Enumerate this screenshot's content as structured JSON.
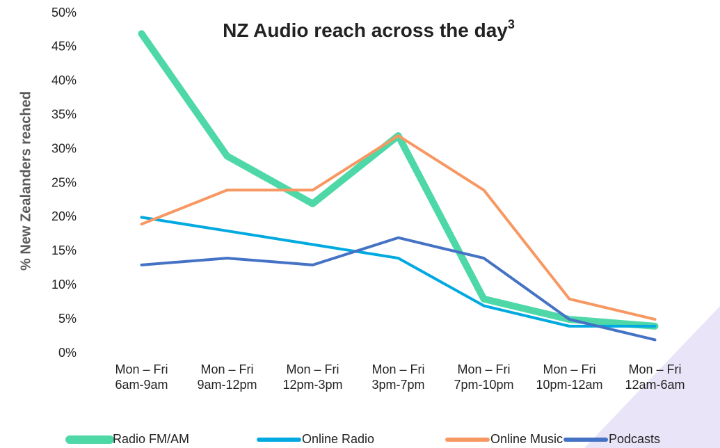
{
  "chart_data": {
    "type": "line",
    "title": "NZ Audio reach across the day",
    "title_note": "3",
    "ylabel": "% New Zealanders reached",
    "categories": [
      [
        "Mon – Fri",
        "6am-9am"
      ],
      [
        "Mon – Fri",
        "9am-12pm"
      ],
      [
        "Mon – Fri",
        "12pm-3pm"
      ],
      [
        "Mon – Fri",
        "3pm-7pm"
      ],
      [
        "Mon – Fri",
        "7pm-10pm"
      ],
      [
        "Mon – Fri",
        "10pm-12am"
      ],
      [
        "Mon – Fri",
        "12am-6am"
      ]
    ],
    "series": [
      {
        "name": "Radio FM/AM",
        "color": "#4ed8a8",
        "width": 10,
        "values": [
          47,
          29,
          22,
          32,
          8,
          5,
          4
        ]
      },
      {
        "name": "Online Radio",
        "color": "#00a9e0",
        "width": 4,
        "values": [
          20,
          18,
          16,
          14,
          7,
          4,
          4
        ]
      },
      {
        "name": "Online Music",
        "color": "#f79862",
        "width": 4,
        "values": [
          19,
          24,
          24,
          32,
          24,
          8,
          5
        ]
      },
      {
        "name": "Podcasts",
        "color": "#4472c4",
        "width": 4,
        "values": [
          13,
          14,
          13,
          17,
          14,
          5,
          2
        ]
      }
    ],
    "ylim": [
      0,
      50
    ],
    "yticks": [
      {
        "value": 0,
        "label": "0%"
      },
      {
        "value": 5,
        "label": "5%"
      },
      {
        "value": 10,
        "label": "10%"
      },
      {
        "value": 15,
        "label": "15%"
      },
      {
        "value": 20,
        "label": "20%"
      },
      {
        "value": 25,
        "label": "25%"
      },
      {
        "value": 30,
        "label": "30%"
      },
      {
        "value": 35,
        "label": "35%"
      },
      {
        "value": 40,
        "label": "40%"
      },
      {
        "value": 45,
        "label": "45%"
      },
      {
        "value": 50,
        "label": "50%"
      }
    ],
    "grid": false,
    "legend": "bottom"
  }
}
